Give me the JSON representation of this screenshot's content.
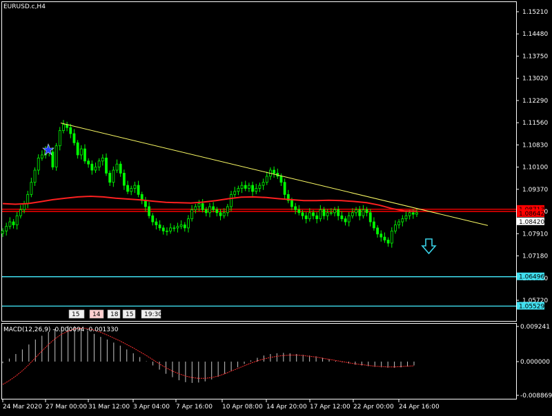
{
  "symbol_title": "EURUSD.c,H4",
  "macd_label": "MACD(12,26,9) -0.000094 -0.001330",
  "colors": {
    "background": "#000000",
    "grid": "#ffffff",
    "candle": "#00ff00",
    "ma": "#ff2020",
    "trendline": "#ffff66",
    "support": "#40e0f0",
    "resistance": "#ff0000",
    "arrow": "#3ad3e8",
    "macd_hist": "#c8c8c8",
    "macd_signal": "#ff3030"
  },
  "chart_data": {
    "type": "candlestick",
    "price_axis_ticks": [
      "1.15210",
      "1.14480",
      "1.13750",
      "1.13020",
      "1.12290",
      "1.11560",
      "1.10830",
      "1.10100",
      "1.09370",
      "1.08640",
      "1.07910",
      "1.07180",
      "1.06450",
      "1.05720"
    ],
    "price_labels": [
      {
        "text": "1.08713",
        "bg": "#ff0000",
        "price": 1.08713
      },
      {
        "text": "1.08642",
        "bg": "#ff0000",
        "price": 1.08642
      },
      {
        "text": "1.08420",
        "bg": "#ffffff",
        "price": 1.0842
      },
      {
        "text": "1.06496",
        "bg": "#40e0f0",
        "price": 1.06496
      },
      {
        "text": "1.05529",
        "bg": "#40e0f0",
        "price": 1.05529
      }
    ],
    "macd_axis_ticks": [
      "0.009241",
      "0.000000",
      "-0.008869"
    ],
    "time_labels": [
      "24 Mar 2020",
      "27 Mar 00:00",
      "31 Mar 12:00",
      "3 Apr 04:00",
      "7 Apr 16:00",
      "10 Apr 08:00",
      "14 Apr 20:00",
      "17 Apr 12:00",
      "22 Apr 00:00",
      "24 Apr 16:00"
    ],
    "session_tags": [
      "15",
      "14",
      "18",
      "15",
      "19:30"
    ],
    "ylim": [
      1.0535,
      1.1535
    ],
    "macd_ylim": [
      -0.0092,
      0.0095
    ],
    "closes": [
      1.08,
      1.0815,
      1.083,
      1.082,
      1.085,
      1.087,
      1.089,
      1.092,
      1.096,
      1.1,
      1.104,
      1.105,
      1.107,
      1.106,
      1.101,
      1.108,
      1.113,
      1.115,
      1.114,
      1.112,
      1.109,
      1.105,
      1.107,
      1.103,
      1.102,
      1.1,
      1.101,
      1.103,
      1.104,
      1.099,
      1.096,
      1.1,
      1.102,
      1.099,
      1.095,
      1.093,
      1.094,
      1.095,
      1.092,
      1.09,
      1.088,
      1.085,
      1.083,
      1.082,
      1.081,
      1.08,
      1.08,
      1.081,
      1.081,
      1.0815,
      1.082,
      1.081,
      1.084,
      1.087,
      1.088,
      1.089,
      1.087,
      1.086,
      1.088,
      1.087,
      1.086,
      1.085,
      1.086,
      1.088,
      1.092,
      1.093,
      1.094,
      1.095,
      1.094,
      1.095,
      1.093,
      1.094,
      1.095,
      1.096,
      1.098,
      1.1,
      1.099,
      1.098,
      1.096,
      1.092,
      1.09,
      1.088,
      1.087,
      1.086,
      1.085,
      1.084,
      1.086,
      1.085,
      1.084,
      1.087,
      1.085,
      1.086,
      1.086,
      1.087,
      1.085,
      1.084,
      1.083,
      1.085,
      1.086,
      1.087,
      1.085,
      1.087,
      1.086,
      1.083,
      1.081,
      1.079,
      1.078,
      1.077,
      1.076,
      1.08,
      1.082,
      1.083,
      1.084,
      1.085,
      1.086,
      1.0855,
      1.086
    ],
    "ma_values": [
      1.089,
      1.0888,
      1.089,
      1.0896,
      1.0903,
      1.0908,
      1.0912,
      1.0914,
      1.0912,
      1.0908,
      1.0905,
      1.0902,
      1.0898,
      1.0894,
      1.0893,
      1.0892,
      1.0895,
      1.09,
      1.0906,
      1.0911,
      1.0912,
      1.091,
      1.0906,
      1.0903,
      1.09,
      1.09,
      1.0901,
      1.09,
      1.0897,
      1.0893,
      1.0885,
      1.0874,
      1.0866,
      1.0865
    ],
    "trendline": {
      "start_label": "27 Mar 00:00",
      "start_price": 1.1155,
      "end_price": 1.0818
    },
    "horizontal_levels": {
      "resistance_upper": 1.08713,
      "resistance_lower": 1.08642,
      "support_upper": 1.06496,
      "support_lower": 1.05529
    },
    "macd_hist": [
      -0.0004,
      0.0008,
      0.002,
      0.0032,
      0.0045,
      0.0058,
      0.0068,
      0.0078,
      0.0086,
      0.0092,
      0.0094,
      0.0093,
      0.0088,
      0.0081,
      0.0073,
      0.0065,
      0.0058,
      0.005,
      0.0042,
      0.0032,
      0.0022,
      0.0012,
      0.0001,
      -0.001,
      -0.0021,
      -0.0032,
      -0.0041,
      -0.0049,
      -0.0054,
      -0.0056,
      -0.0055,
      -0.0052,
      -0.0047,
      -0.004,
      -0.0032,
      -0.0024,
      -0.0015,
      -0.0006,
      0.0003,
      0.001,
      0.0016,
      0.002,
      0.0022,
      0.0023,
      0.0022,
      0.002,
      0.0018,
      0.0016,
      0.0014,
      0.001,
      0.0006,
      0.0002,
      -0.0002,
      -0.0005,
      -0.0008,
      -0.001,
      -0.0012,
      -0.0014,
      -0.0015,
      -0.0016,
      -0.0016,
      -0.0015,
      -0.0013,
      -0.001
    ],
    "macd_signal": [
      -0.006,
      -0.005,
      -0.0038,
      -0.0024,
      -0.0008,
      0.001,
      0.0028,
      0.0045,
      0.006,
      0.0072,
      0.008,
      0.0086,
      0.0088,
      0.0087,
      0.0083,
      0.0077,
      0.007,
      0.0062,
      0.0054,
      0.0045,
      0.0036,
      0.0026,
      0.0016,
      0.0005,
      -0.0006,
      -0.0016,
      -0.0025,
      -0.0032,
      -0.0038,
      -0.0042,
      -0.0044,
      -0.0044,
      -0.0042,
      -0.0038,
      -0.0032,
      -0.0025,
      -0.0018,
      -0.0011,
      -0.0004,
      0.0002,
      0.0007,
      0.0011,
      0.0014,
      0.0016,
      0.0017,
      0.0017,
      0.0016,
      0.0014,
      0.0012,
      0.0009,
      0.0006,
      0.0003,
      0.0,
      -0.0003,
      -0.0006,
      -0.0008,
      -0.001,
      -0.0012,
      -0.0013,
      -0.0014,
      -0.0014,
      -0.0013,
      -0.0012,
      -0.0011
    ]
  }
}
